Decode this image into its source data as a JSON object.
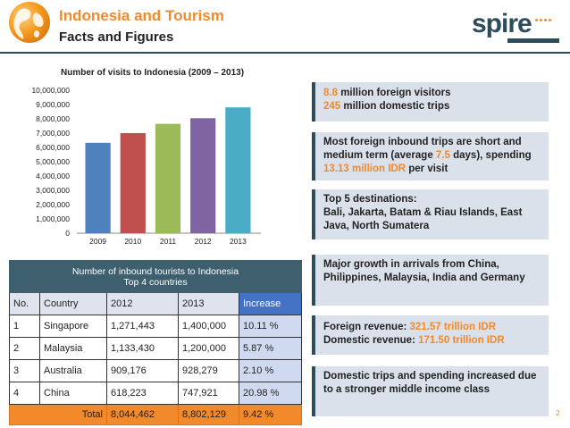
{
  "header": {
    "title": "Indonesia and Tourism",
    "subtitle": "Facts and Figures",
    "logo": "spire"
  },
  "chart_data": {
    "type": "bar",
    "title": "Number of visits to Indonesia (2009 – 2013)",
    "categories": [
      "2009",
      "2010",
      "2011",
      "2012",
      "2013"
    ],
    "values": [
      6323730,
      7002944,
      7649731,
      8044462,
      8802129
    ],
    "colors": [
      "#4f81bd",
      "#c0504d",
      "#9bbb59",
      "#8064a2",
      "#4bacc6"
    ],
    "ylim": [
      0,
      10000000
    ],
    "yticks": [
      "0",
      "1,000,000",
      "2,000,000",
      "3,000,000",
      "4,000,000",
      "5,000,000",
      "6,000,000",
      "7,000,000",
      "8,000,000",
      "9,000,000",
      "10,000,000"
    ],
    "xlabel": "",
    "ylabel": ""
  },
  "table": {
    "caption_line1": "Number of inbound tourists to Indonesia",
    "caption_line2": "Top 4 countries",
    "headers": [
      "No.",
      "Country",
      "2012",
      "2013",
      "Increase"
    ],
    "rows": [
      [
        "1",
        "Singapore",
        "1,271,443",
        "1,400,000",
        "10.11 %"
      ],
      [
        "2",
        "Malaysia",
        "1,133,430",
        "1,200,000",
        "5.87 %"
      ],
      [
        "3",
        "Australia",
        "909,176",
        "928,279",
        "2.10 %"
      ],
      [
        "4",
        "China",
        "618,223",
        "747,921",
        "20.98 %"
      ]
    ],
    "total": {
      "label": "Total",
      "y2012": "8,044,462",
      "y2013": "8,802,129",
      "increase": "9.42 %"
    }
  },
  "boxes": {
    "visitors": {
      "v1": "8.8",
      "t1": " million foreign visitors",
      "v2": "245",
      "t2": " million domestic trips"
    },
    "trips": {
      "a": "Most foreign inbound trips are short and medium term (average ",
      "v1": "7.5",
      "b": " days), spending ",
      "v2": "13.13 million IDR",
      "c": " per visit"
    },
    "destinations": {
      "heading": "Top 5 destinations:",
      "list": "Bali, Jakarta, Batam & Riau Islands, East Java, North Sumatera"
    },
    "growth": {
      "text": "Major growth in arrivals from China, Philippines, Malaysia, India and Germany"
    },
    "revenue": {
      "l1": "Foreign revenue: ",
      "v1": "321.57 trillion IDR",
      "l2": "Domestic revenue: ",
      "v2": "171.50 trillion IDR"
    },
    "domestic": {
      "text": "Domestic trips and spending increased due to a stronger middle income class"
    }
  },
  "page_number": "2"
}
